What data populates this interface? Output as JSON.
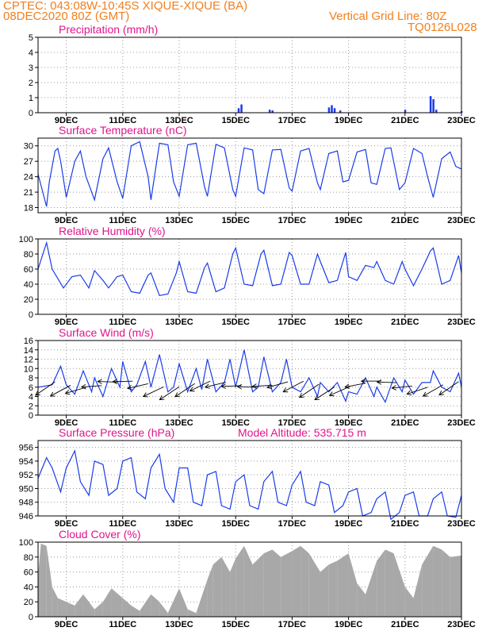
{
  "header": {
    "line1_left": "CPTEC:    043:08W-10:45S  XIQUE-XIQUE (BA)",
    "line2_left": "08DEC2020 80Z (GMT)",
    "line1_right": "Vertical Grid Line: 80Z",
    "line2_right": "TQ0126L028"
  },
  "colors": {
    "header": "#f08020",
    "title": "#e0148c",
    "line": "#1a3ce8",
    "cloud": "#a8a8a8"
  },
  "x_axis": {
    "tick_labels": [
      "9DEC",
      "11DEC",
      "13DEC",
      "15DEC",
      "17DEC",
      "19DEC",
      "21DEC",
      "23DEC"
    ],
    "tick_days": [
      9,
      11,
      13,
      15,
      17,
      19,
      21,
      23
    ],
    "range_days": [
      8.0,
      23.0
    ]
  },
  "chart_data": [
    {
      "type": "bar",
      "title": "Precipitation (mm/h)",
      "ylim": [
        0,
        5
      ],
      "yticks": [
        0,
        1,
        2,
        3,
        4,
        5
      ],
      "x_unit": "day of December 2020",
      "points": [
        [
          15.1,
          0.3
        ],
        [
          15.2,
          0.55
        ],
        [
          16.2,
          0.2
        ],
        [
          16.3,
          0.15
        ],
        [
          18.3,
          0.35
        ],
        [
          18.4,
          0.5
        ],
        [
          18.5,
          0.3
        ],
        [
          18.7,
          0.15
        ],
        [
          21.0,
          0.2
        ],
        [
          21.9,
          1.1
        ],
        [
          22.0,
          0.9
        ],
        [
          22.1,
          0.2
        ],
        [
          23.0,
          0.1
        ]
      ]
    },
    {
      "type": "line",
      "title": "Surface Temperature (nC)",
      "ylim": [
        17,
        31.5
      ],
      "yticks": [
        18,
        21,
        24,
        27,
        30
      ],
      "x_unit": "day of December 2020",
      "x": [
        8.0,
        8.3,
        8.4,
        8.6,
        8.7,
        8.8,
        9.0,
        9.3,
        9.5,
        9.7,
        10.0,
        10.3,
        10.5,
        10.8,
        11.0,
        11.3,
        11.6,
        11.9,
        12.0,
        12.3,
        12.6,
        12.8,
        13.0,
        13.3,
        13.6,
        13.9,
        14.0,
        14.3,
        14.6,
        14.9,
        15.0,
        15.3,
        15.6,
        15.8,
        16.0,
        16.3,
        16.6,
        16.9,
        17.0,
        17.3,
        17.6,
        17.9,
        18.0,
        18.3,
        18.6,
        18.8,
        19.0,
        19.3,
        19.6,
        19.8,
        20.0,
        20.3,
        20.5,
        20.8,
        21.0,
        21.3,
        21.6,
        21.8,
        22.0,
        22.3,
        22.6,
        22.8,
        23.0
      ],
      "y": [
        24.5,
        18.2,
        23,
        29,
        29.5,
        27,
        20,
        27,
        29,
        24,
        19.5,
        27.5,
        29.6,
        23,
        19.8,
        30,
        30.8,
        24,
        19.5,
        30.5,
        30.2,
        23,
        20.2,
        30.2,
        30.5,
        22,
        20.2,
        30.3,
        29.6,
        21.5,
        20.2,
        29.6,
        29.2,
        21.5,
        20.7,
        29.2,
        29.3,
        21.8,
        21.2,
        29,
        29.5,
        22.8,
        21.5,
        28.5,
        29,
        23,
        23.3,
        28.8,
        29.3,
        22.8,
        22.5,
        29.5,
        29.6,
        21.5,
        22.8,
        29.5,
        28.5,
        24,
        20,
        27.5,
        28.8,
        26,
        25.5
      ]
    },
    {
      "type": "line",
      "title": "Relative Humidity (%)",
      "ylim": [
        0,
        100
      ],
      "yticks": [
        0,
        20,
        40,
        60,
        80,
        100
      ],
      "x_unit": "day of December 2020",
      "x": [
        8.0,
        8.3,
        8.5,
        8.9,
        9.2,
        9.5,
        9.8,
        10.0,
        10.3,
        10.5,
        10.8,
        11.0,
        11.3,
        11.6,
        11.9,
        12.0,
        12.3,
        12.6,
        12.9,
        13.0,
        13.3,
        13.6,
        13.9,
        14.0,
        14.3,
        14.6,
        14.9,
        15.0,
        15.3,
        15.6,
        15.9,
        16.0,
        16.3,
        16.6,
        16.9,
        17.0,
        17.3,
        17.6,
        17.9,
        18.0,
        18.3,
        18.6,
        18.9,
        19.0,
        19.3,
        19.6,
        19.9,
        20.0,
        20.3,
        20.6,
        20.9,
        21.0,
        21.3,
        21.6,
        21.9,
        22.0,
        22.3,
        22.6,
        22.9,
        23.0
      ],
      "y": [
        60,
        95,
        60,
        35,
        50,
        52,
        35,
        58,
        45,
        35,
        50,
        52,
        30,
        28,
        52,
        55,
        25,
        27,
        55,
        70,
        30,
        28,
        62,
        68,
        30,
        35,
        80,
        88,
        40,
        38,
        80,
        85,
        38,
        40,
        82,
        78,
        40,
        40,
        80,
        70,
        42,
        45,
        82,
        50,
        45,
        65,
        62,
        70,
        45,
        40,
        70,
        60,
        38,
        60,
        84,
        88,
        40,
        45,
        78,
        55
      ]
    },
    {
      "type": "line",
      "title": "Surface Wind (m/s)",
      "ylim": [
        0,
        16
      ],
      "yticks": [
        0,
        2,
        4,
        6,
        8,
        10,
        12,
        14,
        16
      ],
      "x_unit": "day of December 2020",
      "x": [
        8.0,
        8.5,
        8.8,
        9.0,
        9.3,
        9.6,
        9.9,
        10.0,
        10.3,
        10.6,
        10.9,
        11.0,
        11.3,
        11.5,
        11.8,
        12.0,
        12.3,
        12.6,
        12.8,
        13.0,
        13.3,
        13.6,
        13.8,
        14.0,
        14.3,
        14.6,
        14.8,
        15.0,
        15.3,
        15.6,
        15.8,
        16.0,
        16.3,
        16.6,
        16.8,
        17.0,
        17.3,
        17.6,
        17.9,
        18.0,
        18.3,
        18.6,
        18.9,
        19.0,
        19.3,
        19.6,
        19.9,
        20.0,
        20.3,
        20.6,
        20.9,
        21.0,
        21.3,
        21.6,
        21.9,
        22.0,
        22.3,
        22.6,
        22.9,
        23.0
      ],
      "y": [
        6,
        6.5,
        10.5,
        6.5,
        4.5,
        9.5,
        5,
        8,
        4,
        10,
        6,
        11.5,
        5,
        6.5,
        11.5,
        6,
        13,
        5,
        6,
        11,
        5,
        10,
        5.5,
        12,
        5,
        7,
        12,
        6,
        14,
        5,
        6,
        12.5,
        5,
        7,
        12,
        6,
        5,
        8,
        4,
        7,
        5,
        7,
        3,
        5,
        4.5,
        8,
        4,
        6,
        2.8,
        8,
        5,
        7.5,
        4.5,
        7,
        7,
        9.5,
        6,
        5,
        9,
        6
      ]
    },
    {
      "type": "line",
      "title": "Surface Pressure (hPa)",
      "ylim": [
        946,
        957
      ],
      "yticks": [
        946,
        948,
        950,
        952,
        954,
        956
      ],
      "x_unit": "day of December 2020",
      "x": [
        8.0,
        8.3,
        8.5,
        8.8,
        9.0,
        9.3,
        9.5,
        9.8,
        10.0,
        10.3,
        10.5,
        10.8,
        11.0,
        11.3,
        11.5,
        11.8,
        12.0,
        12.3,
        12.5,
        12.8,
        13.0,
        13.3,
        13.5,
        13.8,
        14.0,
        14.3,
        14.5,
        14.8,
        15.0,
        15.3,
        15.5,
        15.8,
        16.0,
        16.3,
        16.5,
        16.8,
        17.0,
        17.3,
        17.5,
        17.8,
        18.0,
        18.3,
        18.5,
        18.8,
        19.0,
        19.3,
        19.5,
        19.8,
        20.0,
        20.3,
        20.5,
        20.8,
        21.0,
        21.3,
        21.5,
        21.8,
        22.0,
        22.3,
        22.5,
        22.8,
        23.0
      ],
      "y": [
        951.5,
        954.5,
        953,
        949.5,
        953,
        955.5,
        951,
        949,
        954,
        953.5,
        949,
        950,
        954,
        954.5,
        949.5,
        948.5,
        953,
        955,
        950,
        948,
        953,
        953,
        948,
        947.5,
        952,
        952.5,
        947.5,
        947,
        951,
        952,
        947.5,
        947,
        951,
        952.5,
        948,
        947.5,
        950.5,
        952.5,
        948,
        947.5,
        951,
        950.5,
        946.5,
        947.5,
        949.5,
        950,
        946,
        946.5,
        948.5,
        949.5,
        945.5,
        946.5,
        949,
        949.5,
        946,
        946,
        948.5,
        949.5,
        946,
        945.8,
        949
      ]
    },
    {
      "type": "area",
      "title": "Cloud Cover (%)",
      "subtitle": "",
      "ylim": [
        0,
        100
      ],
      "yticks": [
        0,
        20,
        40,
        60,
        80,
        100
      ],
      "x_unit": "day of December 2020",
      "x": [
        8.0,
        8.1,
        8.3,
        8.5,
        8.7,
        9.0,
        9.3,
        9.6,
        10.0,
        10.3,
        10.6,
        11.0,
        11.3,
        11.6,
        12.0,
        12.3,
        12.6,
        13.0,
        13.3,
        13.6,
        14.0,
        14.2,
        14.5,
        14.8,
        15.0,
        15.3,
        15.6,
        16.0,
        16.3,
        16.6,
        17.0,
        17.3,
        17.6,
        18.0,
        18.3,
        18.6,
        19.0,
        19.3,
        19.6,
        20.0,
        20.3,
        20.6,
        21.0,
        21.3,
        21.6,
        22.0,
        22.3,
        22.6,
        23.0
      ],
      "y": [
        55,
        98,
        95,
        40,
        25,
        20,
        15,
        30,
        10,
        20,
        38,
        25,
        15,
        8,
        30,
        20,
        5,
        38,
        10,
        5,
        50,
        70,
        80,
        60,
        78,
        95,
        70,
        85,
        90,
        80,
        88,
        95,
        85,
        60,
        70,
        75,
        85,
        45,
        30,
        75,
        90,
        85,
        40,
        25,
        70,
        95,
        90,
        80,
        82
      ]
    }
  ],
  "extra": {
    "model_altitude": "Model Altitude: 535.715 m"
  }
}
